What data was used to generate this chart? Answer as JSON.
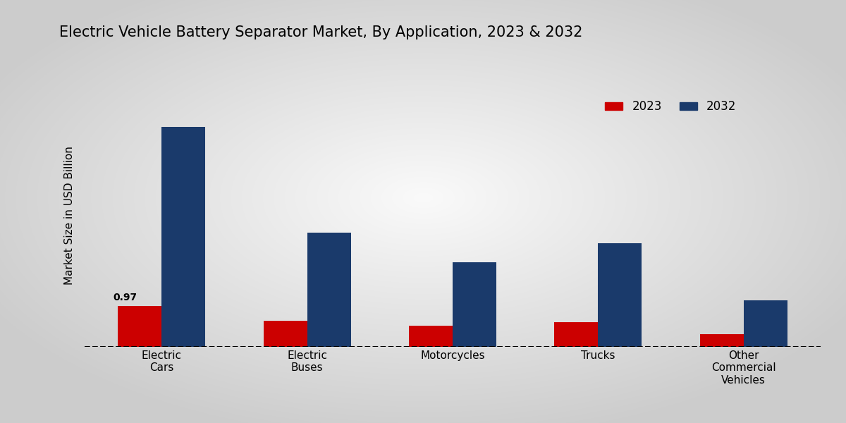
{
  "title": "Electric Vehicle Battery Separator Market, By Application, 2023 & 2032",
  "categories": [
    "Electric\nCars",
    "Electric\nBuses",
    "Motorcycles",
    "Trucks",
    "Other\nCommercial\nVehicles"
  ],
  "values_2023": [
    0.97,
    0.62,
    0.5,
    0.58,
    0.3
  ],
  "values_2032": [
    5.2,
    2.7,
    2.0,
    2.45,
    1.1
  ],
  "color_2023": "#cc0000",
  "color_2032": "#1a3a6b",
  "ylabel": "Market Size in USD Billion",
  "legend_2023": "2023",
  "legend_2032": "2032",
  "annotation_text": "0.97",
  "annotation_bar": 0,
  "ylim": [
    0,
    6.2
  ],
  "bar_width": 0.3,
  "dashed_line_y": 0.0,
  "bg_center": "#f0f0f0",
  "bg_edge": "#b0b8c8"
}
